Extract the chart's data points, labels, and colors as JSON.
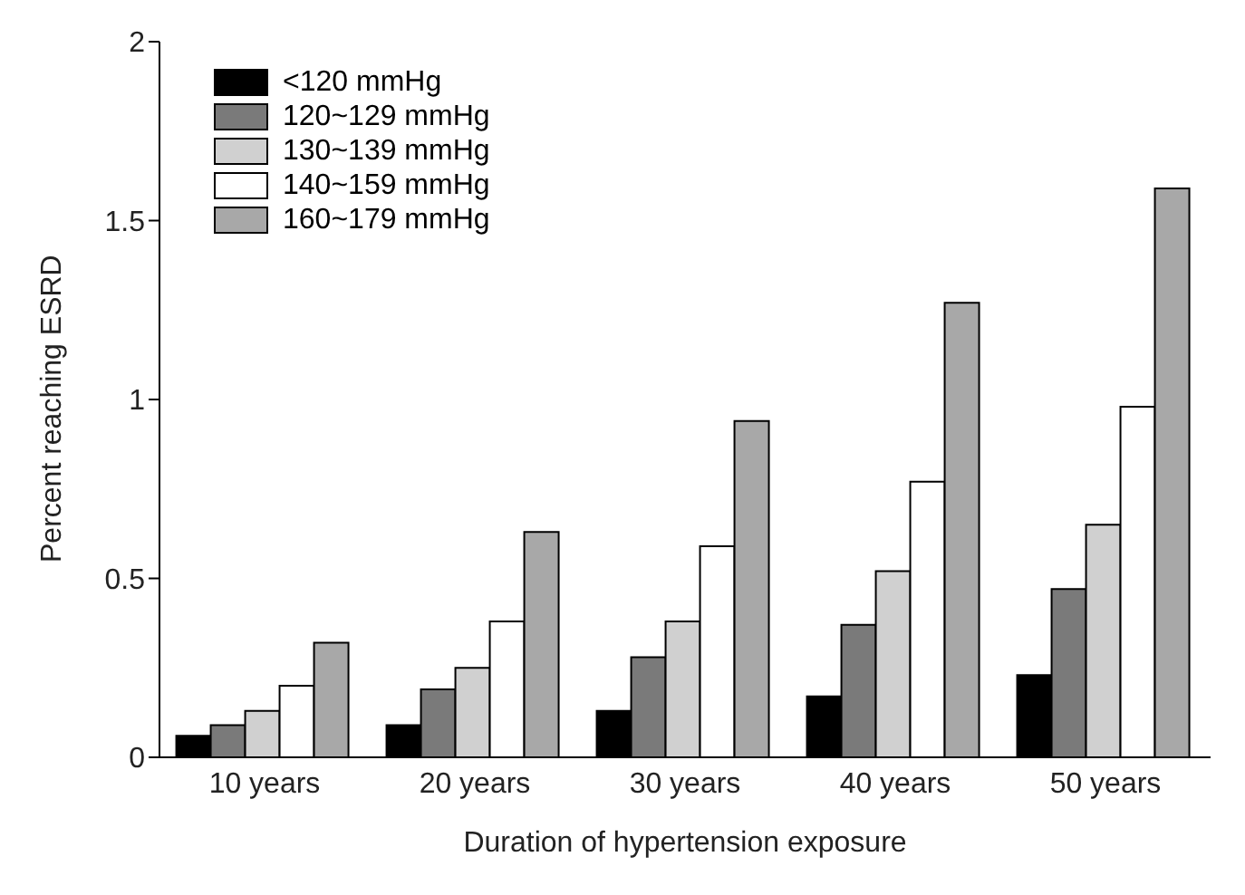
{
  "chart_data": {
    "type": "bar",
    "xlabel": "Duration of hypertension exposure",
    "ylabel": "Percent reaching ESRD",
    "categories": [
      "10 years",
      "20 years",
      "30 years",
      "40 years",
      "50 years"
    ],
    "series": [
      {
        "name": "<120 mmHg",
        "color": "#000000",
        "values": [
          0.06,
          0.09,
          0.13,
          0.17,
          0.23
        ]
      },
      {
        "name": "120~129 mmHg",
        "color": "#7a7a7a",
        "values": [
          0.09,
          0.19,
          0.28,
          0.37,
          0.47
        ]
      },
      {
        "name": "130~139 mmHg",
        "color": "#d0d0d0",
        "values": [
          0.13,
          0.25,
          0.38,
          0.52,
          0.65
        ]
      },
      {
        "name": "140~159 mmHg",
        "color": "#ffffff",
        "values": [
          0.2,
          0.38,
          0.59,
          0.77,
          0.98
        ]
      },
      {
        "name": "160~179 mmHg",
        "color": "#a8a8a8",
        "values": [
          0.32,
          0.63,
          0.94,
          1.27,
          1.59
        ]
      }
    ],
    "ylim": [
      0,
      2
    ],
    "yticks": [
      0,
      0.5,
      1,
      1.5,
      2
    ],
    "grid": false,
    "legend": "top left"
  }
}
